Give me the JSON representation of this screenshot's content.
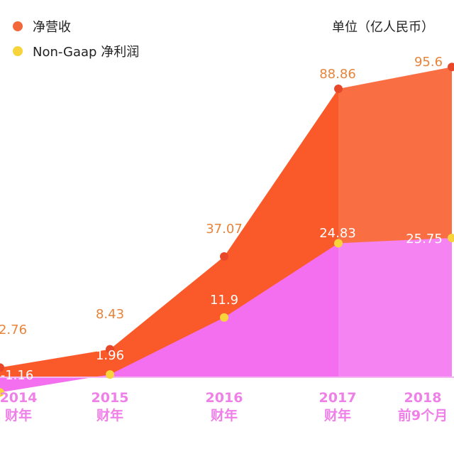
{
  "unit_label": "单位（亿人民币）",
  "legend": [
    {
      "label": "净营收",
      "color": "#f2683a"
    },
    {
      "label": "Non-Gaap 净利润",
      "color": "#f7d33c"
    }
  ],
  "colors": {
    "revenue_fill": "#fa5a2a",
    "profit_fill": "#f46ef0",
    "revenue_point": "#e8482a",
    "profit_point": "#f7d33c",
    "revenue_label": "#e8843a",
    "axis_label": "#ee80e8"
  },
  "chart_data": {
    "type": "area",
    "categories": [
      "2014\n财年",
      "2015\n财年",
      "2016\n财年",
      "2017\n财年",
      "2018\n前9个月"
    ],
    "series": [
      {
        "name": "净营收",
        "values": [
          2.76,
          8.43,
          37.07,
          88.86,
          95.6
        ],
        "labels": [
          "2.76",
          "8.43",
          "37.07",
          "88.86",
          "95.6"
        ]
      },
      {
        "name": "Non-Gaap 净利润",
        "values": [
          -1.16,
          1.96,
          11.9,
          24.83,
          25.75
        ],
        "labels": [
          "-1.16",
          "1.96",
          "11.9",
          "24.83",
          "25.75"
        ]
      }
    ],
    "legend_position": "top-left",
    "grid": false
  }
}
